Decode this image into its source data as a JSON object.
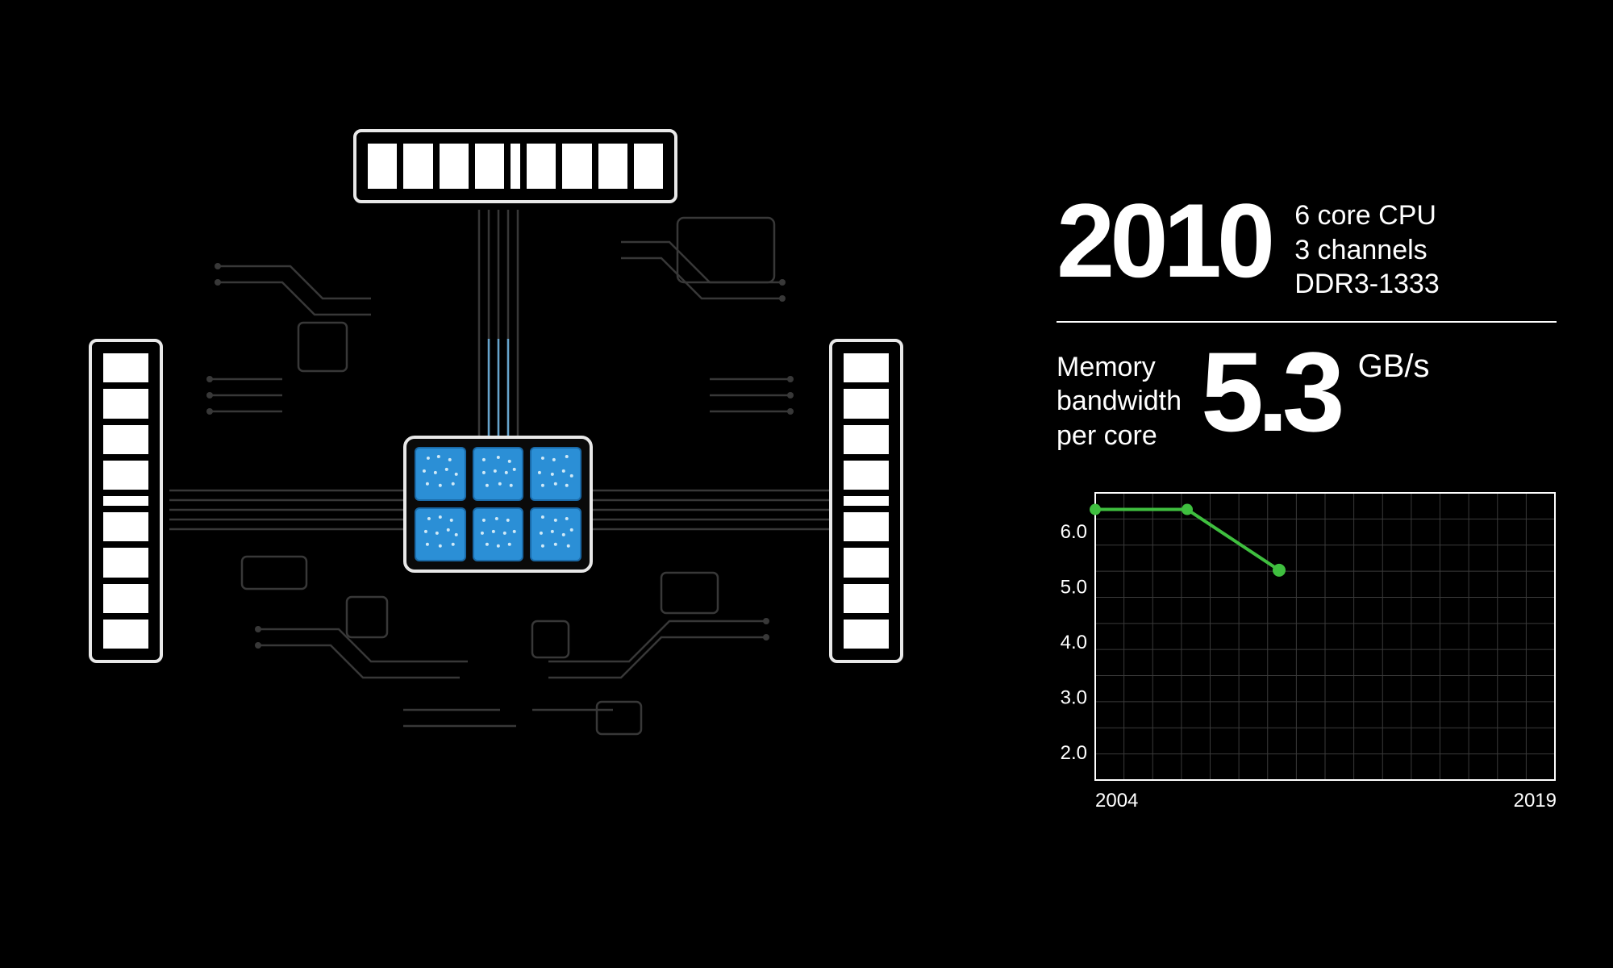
{
  "background_color": "#000000",
  "text_color": "#ffffff",
  "cpu_diagram": {
    "core_count": 6,
    "core_color": "#2b8fd6",
    "core_border_color": "#1a6aa8",
    "dimm_count": 3,
    "dimm_chip_color": "#ffffff",
    "border_color": "#e8e8e8",
    "trace_color": "#383838",
    "trace_highlight_color": "#6fb7e6"
  },
  "header": {
    "year": "2010",
    "spec_lines": [
      "6 core CPU",
      "3 channels",
      "DDR3-1333"
    ]
  },
  "metric": {
    "label_lines": [
      "Memory",
      "bandwidth",
      "per core"
    ],
    "value": "5.3",
    "unit": "GB/s"
  },
  "chart": {
    "type": "line",
    "ylabel_values": [
      "6.0",
      "5.0",
      "4.0",
      "3.0",
      "2.0"
    ],
    "ylim": [
      1.5,
      6.7
    ],
    "xlim": [
      2004,
      2019
    ],
    "x_labels": [
      "2004",
      "2019"
    ],
    "x_gridlines": 16,
    "y_gridlines": 11,
    "grid_color": "#3a3a3a",
    "border_color": "#ffffff",
    "line_color": "#3fbf3f",
    "line_width": 4,
    "marker_radius": 7,
    "marker_last_radius": 8,
    "label_fontsize": 24,
    "series": [
      {
        "x": 2004,
        "y": 6.4
      },
      {
        "x": 2007,
        "y": 6.4
      },
      {
        "x": 2010,
        "y": 5.3
      }
    ]
  }
}
